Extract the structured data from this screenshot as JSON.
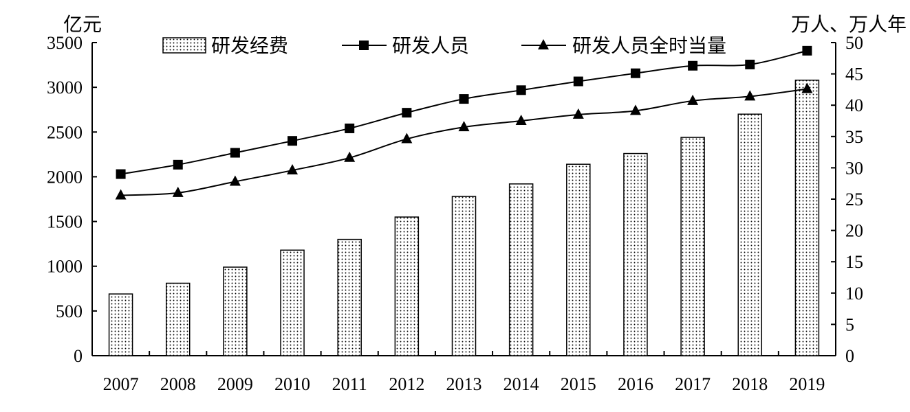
{
  "chart_data": {
    "type": "bar",
    "categories": [
      "2007",
      "2008",
      "2009",
      "2010",
      "2011",
      "2012",
      "2013",
      "2014",
      "2015",
      "2016",
      "2017",
      "2018",
      "2019"
    ],
    "left_axis": {
      "unit": "亿元",
      "ylim": [
        0,
        3500
      ],
      "ticks": [
        0,
        500,
        1000,
        1500,
        2000,
        2500,
        3000,
        3500
      ]
    },
    "right_axis": {
      "unit": "万人、万人年",
      "ylim": [
        0,
        50
      ],
      "ticks": [
        0,
        5,
        10,
        15,
        20,
        25,
        30,
        35,
        40,
        45,
        50
      ]
    },
    "series": [
      {
        "name": "研发经费",
        "type": "bar",
        "axis": "left",
        "values": [
          690,
          810,
          990,
          1180,
          1300,
          1550,
          1780,
          1920,
          2140,
          2260,
          2440,
          2700,
          3080
        ]
      },
      {
        "name": "研发人员",
        "type": "line",
        "marker": "square",
        "axis": "right",
        "values": [
          29.0,
          30.5,
          32.4,
          34.3,
          36.3,
          38.8,
          41.0,
          42.4,
          43.8,
          45.1,
          46.3,
          46.5,
          48.7
        ]
      },
      {
        "name": "研发人员全时当量",
        "type": "line",
        "marker": "triangle",
        "axis": "right",
        "values": [
          25.6,
          26.0,
          27.8,
          29.6,
          31.6,
          34.6,
          36.5,
          37.5,
          38.5,
          39.1,
          40.7,
          41.4,
          42.6
        ]
      }
    ],
    "legend_position": "top",
    "grid": false
  }
}
